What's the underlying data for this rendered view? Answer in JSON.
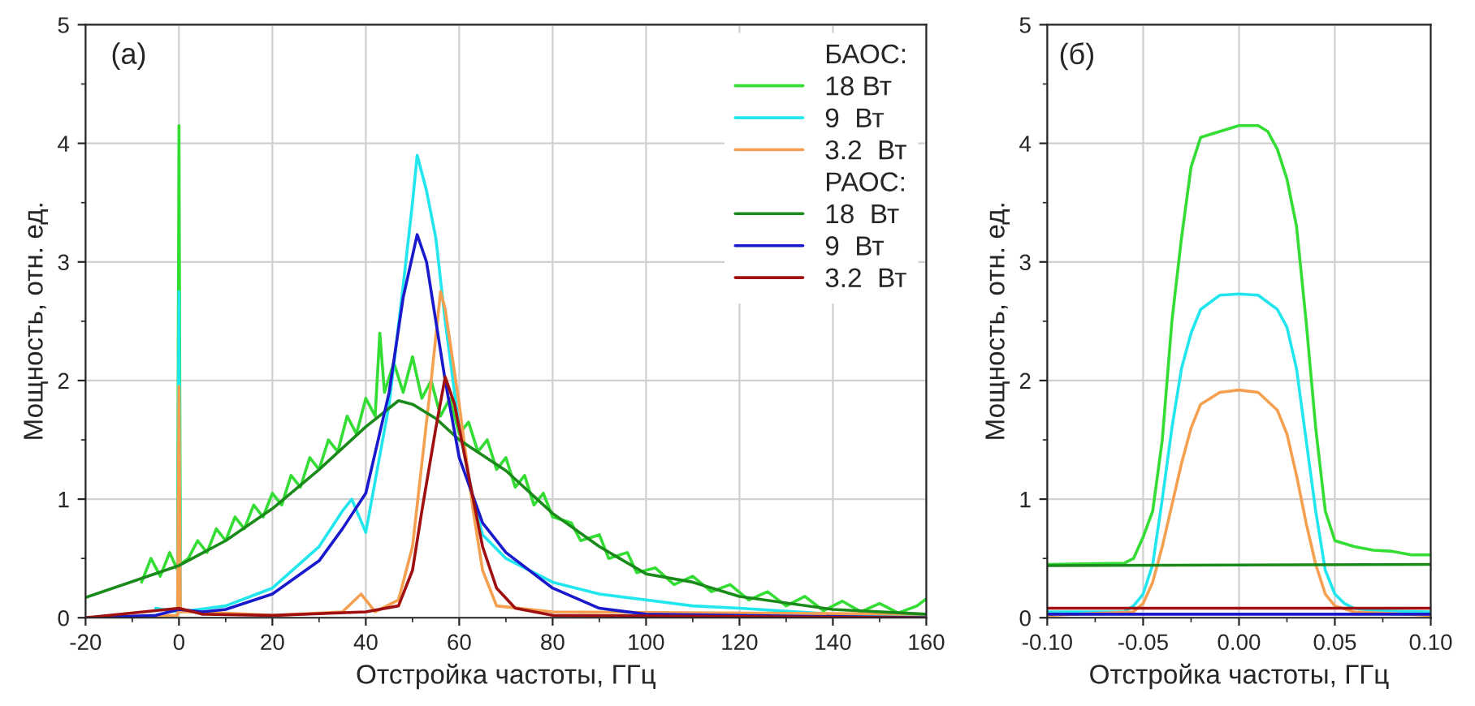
{
  "chart_data": [
    {
      "type": "line",
      "title": "(a)",
      "xlabel": "Отстройка частоты, ГГц",
      "ylabel": "Мощность, отн. ед.",
      "xlim": [
        -20,
        160
      ],
      "ylim": [
        0,
        5
      ],
      "xticks": [
        -20,
        {
          "value": -10,
          "label": null
        },
        0,
        {
          "value": 10,
          "label": null
        },
        20,
        {
          "value": 30,
          "label": null
        },
        40,
        {
          "value": 50,
          "label": null
        },
        60,
        {
          "value": 70,
          "label": null
        },
        80,
        {
          "value": 90,
          "label": null
        },
        100,
        {
          "value": 110,
          "label": null
        },
        120,
        {
          "value": 130,
          "label": null
        },
        140,
        {
          "value": 150,
          "label": null
        },
        160
      ],
      "yticks": [
        0,
        {
          "value": 0.5,
          "label": null
        },
        1,
        {
          "value": 1.5,
          "label": null
        },
        2,
        {
          "value": 2.5,
          "label": null
        },
        3,
        {
          "value": 3.5,
          "label": null
        },
        4,
        {
          "value": 4.5,
          "label": null
        },
        5
      ],
      "grid": true,
      "legend": "top right",
      "legend_title": "БАОС:",
      "annotations": [
        "РАОС:"
      ],
      "series": [
        {
          "name": "18 Вт",
          "color": "#33dd33",
          "x": [
            -8,
            -6,
            -4,
            -2,
            -0.3,
            0,
            0.3,
            2,
            4,
            6,
            8,
            10,
            12,
            14,
            16,
            18,
            20,
            22,
            24,
            26,
            28,
            30,
            32,
            34,
            36,
            38,
            40,
            42,
            43,
            44,
            46,
            48,
            50,
            52,
            54,
            56,
            58,
            60,
            62,
            64,
            66,
            68,
            70,
            72,
            74,
            76,
            78,
            80,
            84,
            86,
            90,
            92,
            96,
            98,
            102,
            106,
            110,
            114,
            118,
            122,
            126,
            130,
            134,
            138,
            142,
            146,
            150,
            154,
            158,
            160
          ],
          "values": [
            0.3,
            0.5,
            0.35,
            0.55,
            0.4,
            4.15,
            0.45,
            0.5,
            0.65,
            0.55,
            0.75,
            0.65,
            0.85,
            0.75,
            0.95,
            0.85,
            1.05,
            0.95,
            1.2,
            1.1,
            1.35,
            1.25,
            1.5,
            1.4,
            1.7,
            1.55,
            1.85,
            1.7,
            2.4,
            1.9,
            2.15,
            1.9,
            2.2,
            1.85,
            2.0,
            1.7,
            1.85,
            1.55,
            1.65,
            1.4,
            1.5,
            1.25,
            1.35,
            1.1,
            1.2,
            0.95,
            1.05,
            0.85,
            0.8,
            0.65,
            0.7,
            0.5,
            0.55,
            0.38,
            0.42,
            0.28,
            0.35,
            0.22,
            0.28,
            0.15,
            0.22,
            0.1,
            0.18,
            0.06,
            0.14,
            0.05,
            0.12,
            0.04,
            0.1,
            0.16
          ]
        },
        {
          "name": "9  Вт",
          "color": "#22e6ee",
          "x": [
            -5,
            -0.3,
            0,
            0.3,
            10,
            20,
            30,
            35,
            37,
            40,
            45,
            48,
            50,
            51,
            53,
            55,
            57,
            60,
            63,
            65,
            70,
            80,
            90,
            100,
            110,
            120,
            140,
            160
          ],
          "values": [
            0.08,
            0.05,
            2.75,
            0.05,
            0.1,
            0.25,
            0.6,
            0.9,
            1.0,
            0.72,
            1.8,
            2.8,
            3.5,
            3.9,
            3.6,
            3.2,
            2.5,
            1.6,
            1.0,
            0.7,
            0.5,
            0.3,
            0.2,
            0.15,
            0.1,
            0.08,
            0.03,
            0.02
          ]
        },
        {
          "name": "3.2  Вт",
          "color": "#f5a050",
          "x": [
            -20,
            -0.3,
            0,
            0.3,
            5,
            20,
            35,
            39,
            42,
            47,
            50,
            52,
            54,
            56,
            57,
            60,
            63,
            65,
            68,
            80,
            160
          ],
          "values": [
            0,
            0.02,
            1.95,
            0.05,
            0.05,
            0.02,
            0.05,
            0.2,
            0.05,
            0.15,
            0.6,
            1.3,
            2.0,
            2.75,
            2.6,
            1.8,
            0.9,
            0.4,
            0.1,
            0.05,
            0.03
          ]
        },
        {
          "name": "18  Вт",
          "color": "#1a8a1a",
          "x": [
            -20,
            0,
            10,
            20,
            30,
            40,
            47,
            50,
            55,
            60,
            70,
            80,
            90,
            100,
            110,
            120,
            140,
            160
          ],
          "values": [
            0.17,
            0.44,
            0.65,
            0.92,
            1.25,
            1.61,
            1.83,
            1.8,
            1.68,
            1.5,
            1.24,
            0.88,
            0.6,
            0.37,
            0.3,
            0.18,
            0.07,
            0.03
          ]
        },
        {
          "name": "9  Вт",
          "color": "#1a1acc",
          "x": [
            -20,
            -5,
            0,
            5,
            10,
            20,
            30,
            35,
            40,
            45,
            48,
            51,
            53,
            55,
            57,
            60,
            65,
            70,
            80,
            90,
            100,
            160
          ],
          "values": [
            0,
            0.02,
            0.07,
            0.05,
            0.07,
            0.2,
            0.48,
            0.75,
            1.05,
            1.9,
            2.7,
            3.23,
            3.0,
            2.5,
            2.0,
            1.35,
            0.8,
            0.55,
            0.25,
            0.08,
            0.03,
            0
          ]
        },
        {
          "name": "3.2  Вт",
          "color": "#a01010",
          "x": [
            -20,
            0,
            5,
            20,
            40,
            47,
            50,
            52,
            55,
            57,
            59,
            62,
            65,
            68,
            72,
            80,
            160
          ],
          "values": [
            0,
            0.08,
            0.03,
            0.02,
            0.05,
            0.1,
            0.4,
            0.9,
            1.6,
            2.03,
            1.8,
            1.2,
            0.6,
            0.25,
            0.08,
            0.02,
            0
          ]
        }
      ]
    },
    {
      "type": "line",
      "title": "(б)",
      "xlabel": "Отстройка частоты, ГГц",
      "ylabel": "Мощность, отн. ед.",
      "xlim": [
        -0.1,
        0.1
      ],
      "ylim": [
        0,
        5
      ],
      "xticks": [
        {
          "value": -0.1,
          "label": "-0.10"
        },
        {
          "value": -0.075,
          "label": null
        },
        {
          "value": -0.05,
          "label": "-0.05"
        },
        {
          "value": -0.025,
          "label": null
        },
        {
          "value": 0,
          "label": "0.00"
        },
        {
          "value": 0.025,
          "label": null
        },
        {
          "value": 0.05,
          "label": "0.05"
        },
        {
          "value": 0.075,
          "label": null
        },
        {
          "value": 0.1,
          "label": "0.10"
        }
      ],
      "yticks": [
        0,
        {
          "value": 0.5,
          "label": null
        },
        1,
        {
          "value": 1.5,
          "label": null
        },
        2,
        {
          "value": 2.5,
          "label": null
        },
        3,
        {
          "value": 3.5,
          "label": null
        },
        4,
        {
          "value": 4.5,
          "label": null
        },
        5
      ],
      "grid": true,
      "series": [
        {
          "color": "#33dd33",
          "x": [
            -0.1,
            -0.06,
            -0.055,
            -0.05,
            -0.045,
            -0.04,
            -0.035,
            -0.03,
            -0.025,
            -0.02,
            -0.01,
            0,
            0.01,
            0.015,
            0.02,
            0.025,
            0.03,
            0.035,
            0.04,
            0.045,
            0.05,
            0.06,
            0.07,
            0.08,
            0.09,
            0.1
          ],
          "values": [
            0.45,
            0.46,
            0.5,
            0.68,
            0.9,
            1.5,
            2.5,
            3.2,
            3.8,
            4.05,
            4.1,
            4.15,
            4.15,
            4.1,
            3.95,
            3.7,
            3.3,
            2.5,
            1.6,
            0.9,
            0.65,
            0.6,
            0.57,
            0.56,
            0.53,
            0.53
          ]
        },
        {
          "color": "#22e6ee",
          "x": [
            -0.1,
            -0.06,
            -0.055,
            -0.05,
            -0.045,
            -0.04,
            -0.035,
            -0.03,
            -0.025,
            -0.02,
            -0.01,
            0,
            0.01,
            0.02,
            0.025,
            0.03,
            0.035,
            0.04,
            0.045,
            0.05,
            0.055,
            0.06,
            0.07,
            0.1
          ],
          "values": [
            0.05,
            0.05,
            0.1,
            0.2,
            0.45,
            1.0,
            1.6,
            2.1,
            2.4,
            2.6,
            2.72,
            2.73,
            2.72,
            2.6,
            2.45,
            2.1,
            1.5,
            0.9,
            0.4,
            0.2,
            0.12,
            0.08,
            0.06,
            0.05
          ]
        },
        {
          "color": "#f5a050",
          "x": [
            -0.1,
            -0.055,
            -0.05,
            -0.045,
            -0.04,
            -0.035,
            -0.03,
            -0.025,
            -0.02,
            -0.01,
            0,
            0.01,
            0.02,
            0.025,
            0.03,
            0.035,
            0.04,
            0.045,
            0.05,
            0.06,
            0.1
          ],
          "values": [
            0.02,
            0.05,
            0.12,
            0.3,
            0.6,
            0.95,
            1.3,
            1.6,
            1.8,
            1.9,
            1.92,
            1.9,
            1.75,
            1.55,
            1.2,
            0.8,
            0.45,
            0.2,
            0.1,
            0.05,
            0.02
          ]
        },
        {
          "color": "#1a8a1a",
          "x": [
            -0.1,
            0.1
          ],
          "values": [
            0.44,
            0.45
          ]
        },
        {
          "color": "#1a1acc",
          "x": [
            -0.1,
            0.1
          ],
          "values": [
            0.03,
            0.03
          ]
        },
        {
          "color": "#a01010",
          "x": [
            -0.1,
            0.1
          ],
          "values": [
            0.08,
            0.08
          ]
        }
      ]
    }
  ]
}
